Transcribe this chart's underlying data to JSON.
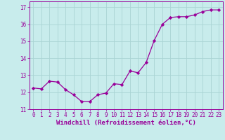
{
  "x": [
    0,
    1,
    2,
    3,
    4,
    5,
    6,
    7,
    8,
    9,
    10,
    11,
    12,
    13,
    14,
    15,
    16,
    17,
    18,
    19,
    20,
    21,
    22,
    23
  ],
  "y": [
    12.25,
    12.2,
    12.65,
    12.6,
    12.15,
    11.85,
    11.45,
    11.45,
    11.85,
    11.95,
    12.5,
    12.45,
    13.25,
    13.15,
    13.75,
    15.05,
    16.0,
    16.4,
    16.45,
    16.45,
    16.55,
    16.75,
    16.85,
    16.85
  ],
  "line_color": "#990099",
  "marker": "D",
  "markersize": 2.2,
  "linewidth": 0.9,
  "xlim": [
    -0.5,
    23.5
  ],
  "ylim": [
    11.0,
    17.35
  ],
  "yticks": [
    11,
    12,
    13,
    14,
    15,
    16,
    17
  ],
  "xticks": [
    0,
    1,
    2,
    3,
    4,
    5,
    6,
    7,
    8,
    9,
    10,
    11,
    12,
    13,
    14,
    15,
    16,
    17,
    18,
    19,
    20,
    21,
    22,
    23
  ],
  "xlabel": "Windchill (Refroidissement éolien,°C)",
  "bg_color": "#c8ecec",
  "grid_color": "#aad4d4",
  "tick_label_color": "#990099",
  "axis_label_color": "#990099",
  "tick_fontsize": 5.5,
  "xlabel_fontsize": 6.5
}
